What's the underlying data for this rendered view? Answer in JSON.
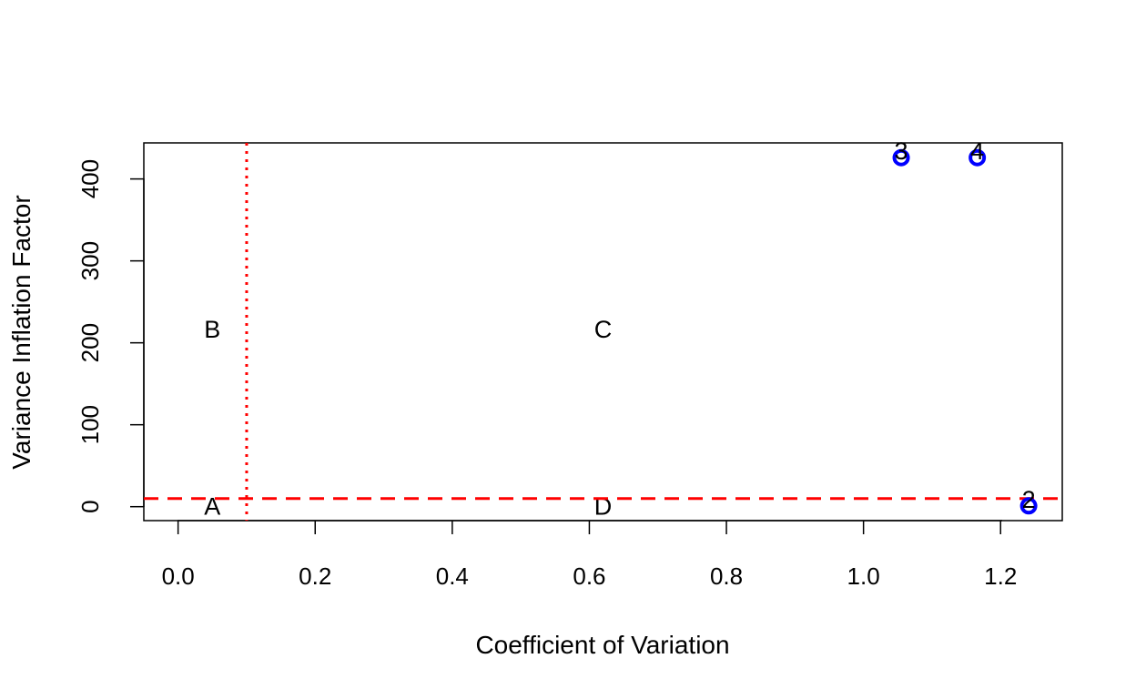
{
  "chart_data": {
    "type": "scatter",
    "title": "",
    "xlabel": "Coefficient of Variation",
    "ylabel": "Variance Inflation Factor",
    "xlim": [
      -0.05,
      1.29
    ],
    "ylim": [
      -17,
      444
    ],
    "xticks": [
      0.0,
      0.2,
      0.4,
      0.6,
      0.8,
      1.0,
      1.2
    ],
    "xtick_labels": [
      "0.0",
      "0.2",
      "0.4",
      "0.6",
      "0.8",
      "1.0",
      "1.2"
    ],
    "yticks": [
      0,
      100,
      200,
      300,
      400
    ],
    "ytick_labels": [
      "0",
      "100",
      "200",
      "300",
      "400"
    ],
    "grid": false,
    "points": [
      {
        "label": "3",
        "x": 1.055,
        "y": 426
      },
      {
        "label": "4",
        "x": 1.166,
        "y": 426
      },
      {
        "label": "2",
        "x": 1.241,
        "y": 1
      }
    ],
    "point_color": "#0000ff",
    "reference_lines": [
      {
        "orientation": "vertical",
        "value": 0.1,
        "style": "dotted",
        "color": "#ff0000"
      },
      {
        "orientation": "horizontal",
        "value": 10,
        "style": "dashed",
        "color": "#ff0000"
      }
    ],
    "region_labels": [
      {
        "text": "A",
        "x": 0.05,
        "y": 0
      },
      {
        "text": "B",
        "x": 0.05,
        "y": 216
      },
      {
        "text": "C",
        "x": 0.62,
        "y": 216
      },
      {
        "text": "D",
        "x": 0.62,
        "y": 0
      }
    ]
  }
}
